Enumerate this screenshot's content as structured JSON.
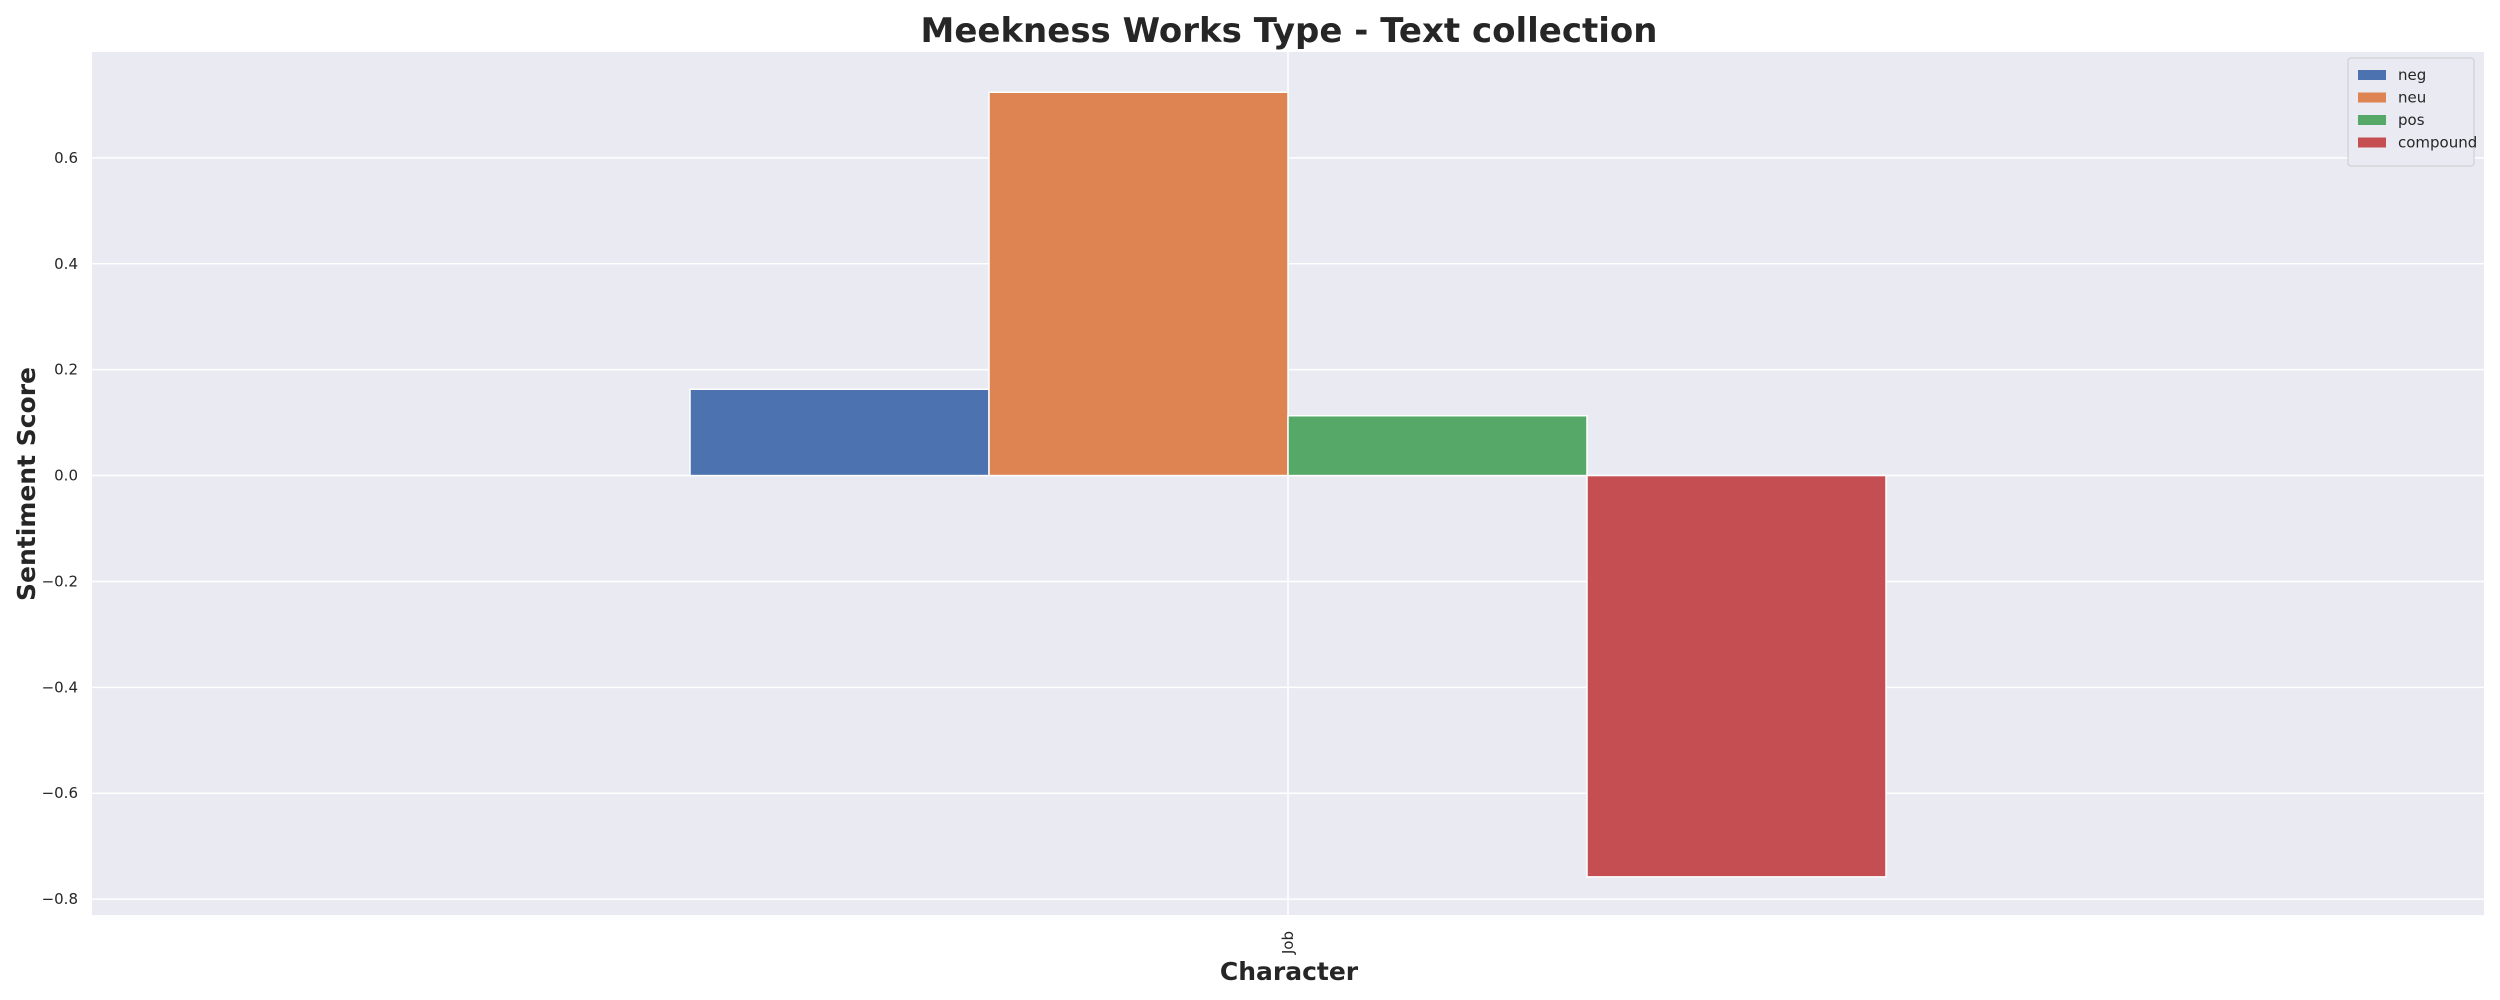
{
  "chart_data": {
    "type": "bar",
    "title": "Meekness Works Type - Text collection",
    "xlabel": "Character",
    "ylabel": "Sentiment Score",
    "categories": [
      "Job"
    ],
    "series": [
      {
        "name": "neg",
        "values": [
          0.163
        ],
        "color": "#4c72b0"
      },
      {
        "name": "neu",
        "values": [
          0.724
        ],
        "color": "#dd8452"
      },
      {
        "name": "pos",
        "values": [
          0.113
        ],
        "color": "#55a868"
      },
      {
        "name": "compound",
        "values": [
          -0.758
        ],
        "color": "#c44e52"
      }
    ],
    "ylim": [
      -0.83,
      0.8
    ],
    "yticks": [
      -0.8,
      -0.6,
      -0.4,
      -0.2,
      0.0,
      0.2,
      0.4,
      0.6
    ],
    "ytick_labels": [
      "−0.8",
      "−0.6",
      "−0.4",
      "−0.2",
      "0.0",
      "0.2",
      "0.4",
      "0.6"
    ],
    "grid": true,
    "legend_position": "top-right",
    "colors": {
      "background": "#eaeaf2",
      "grid": "#ffffff"
    }
  }
}
